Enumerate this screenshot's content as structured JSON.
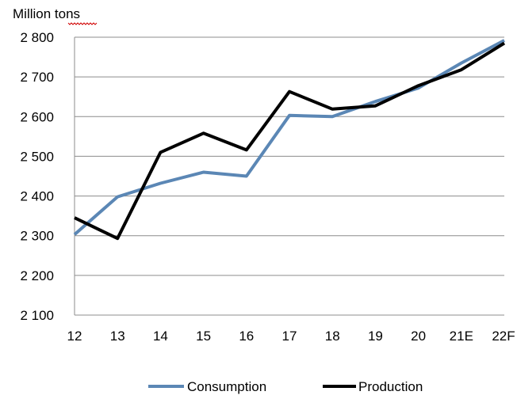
{
  "chart_data": {
    "type": "line",
    "unit_label": "Million tons",
    "categories": [
      "12",
      "13",
      "14",
      "15",
      "16",
      "17",
      "18",
      "19",
      "20",
      "21E",
      "22F"
    ],
    "y_ticks": [
      "2 100",
      "2 200",
      "2 300",
      "2 400",
      "2 500",
      "2 600",
      "2 700",
      "2 800"
    ],
    "ylim": [
      2100,
      2800
    ],
    "y_tick_values": [
      2100,
      2200,
      2300,
      2400,
      2500,
      2600,
      2700,
      2800
    ],
    "grid": true,
    "legend_position": "bottom",
    "series": [
      {
        "name": "Consumption",
        "color": "#5b87b5",
        "values": [
          2303,
          2398,
          2432,
          2460,
          2450,
          2603,
          2600,
          2638,
          2672,
          2735,
          2792
        ]
      },
      {
        "name": "Production",
        "color": "#000000",
        "values": [
          2345,
          2293,
          2510,
          2558,
          2516,
          2663,
          2619,
          2627,
          2678,
          2718,
          2785
        ]
      }
    ]
  }
}
